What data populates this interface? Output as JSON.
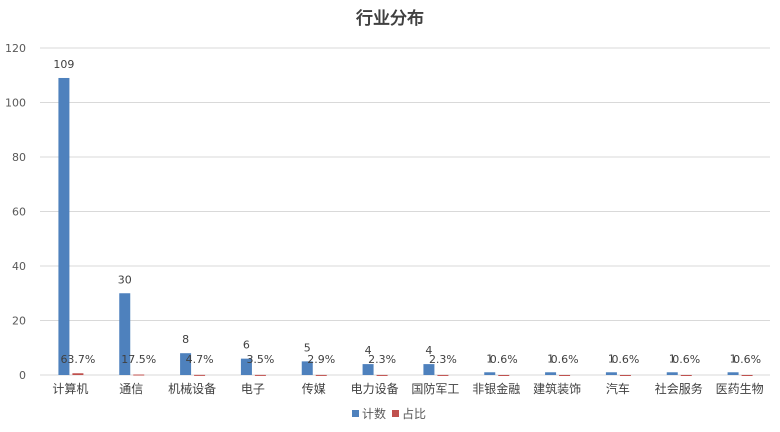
{
  "chart_data": {
    "type": "bar",
    "title": "行业分布",
    "categories": [
      "计算机",
      "通信",
      "机械设备",
      "电子",
      "传媒",
      "电力设备",
      "国防军工",
      "非银金融",
      "建筑装饰",
      "汽车",
      "社会服务",
      "医药生物"
    ],
    "series": [
      {
        "name": "计数",
        "color": "#4e81bd",
        "values": [
          109,
          30,
          8,
          6,
          5,
          4,
          4,
          1,
          1,
          1,
          1,
          1
        ],
        "labels": [
          "109",
          "30",
          "8",
          "6",
          "5",
          "4",
          "4",
          "1",
          "1",
          "1",
          "1",
          "1"
        ]
      },
      {
        "name": "占比",
        "color": "#c0504d",
        "values": [
          0.637,
          0.175,
          0.047,
          0.035,
          0.029,
          0.023,
          0.023,
          0.006,
          0.006,
          0.006,
          0.006,
          0.006
        ],
        "labels": [
          "63.7%",
          "17.5%",
          "4.7%",
          "3.5%",
          "2.9%",
          "2.3%",
          "2.3%",
          "0.6%",
          "0.6%",
          "0.6%",
          "0.6%",
          "0.6%"
        ]
      }
    ],
    "yticks": [
      "0",
      "20",
      "40",
      "60",
      "80",
      "100",
      "120"
    ],
    "ylim": [
      0,
      120
    ],
    "grid": true,
    "legend_position": "bottom"
  }
}
